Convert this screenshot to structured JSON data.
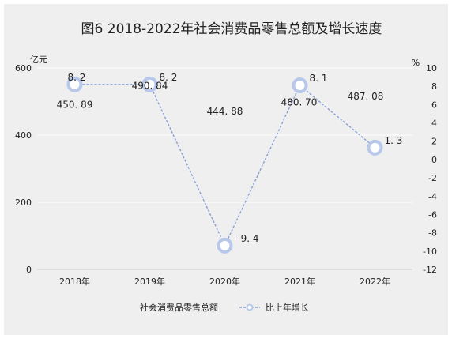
{
  "chart_data": {
    "type": "bar+line",
    "title": "图6 2018-2022年社会消费品零售总额及增长速度",
    "categories": [
      "2018年",
      "2019年",
      "2020年",
      "2021年",
      "2022年"
    ],
    "y_left": {
      "label": "亿元",
      "range": [
        0,
        600
      ],
      "ticks": [
        0,
        200,
        400,
        600
      ]
    },
    "y_right": {
      "label": "%",
      "range": [
        -12,
        10
      ],
      "ticks": [
        10,
        8,
        6,
        4,
        2,
        0,
        -2,
        -4,
        -6,
        -8,
        -10,
        -12
      ]
    },
    "series": [
      {
        "name": "社会消费品零售总额",
        "axis": "left",
        "values": [
          450.89,
          490.84,
          444.88,
          480.7,
          487.08
        ],
        "labels": [
          "450. 89",
          "490. 84",
          "444. 88",
          "480. 70",
          "487. 08"
        ]
      },
      {
        "name": "比上年增长",
        "axis": "right",
        "values": [
          8.2,
          8.2,
          -9.4,
          8.1,
          1.3
        ],
        "labels": [
          "8. 2",
          "8. 2",
          "- 9. 4",
          "8. 1",
          "1. 3"
        ]
      }
    ],
    "grid": true,
    "legend": "bottom",
    "colors": {
      "line": "#8aa0d8",
      "marker": "#b8c8ea",
      "background": "#efefef",
      "grid": "#ffffff"
    }
  }
}
